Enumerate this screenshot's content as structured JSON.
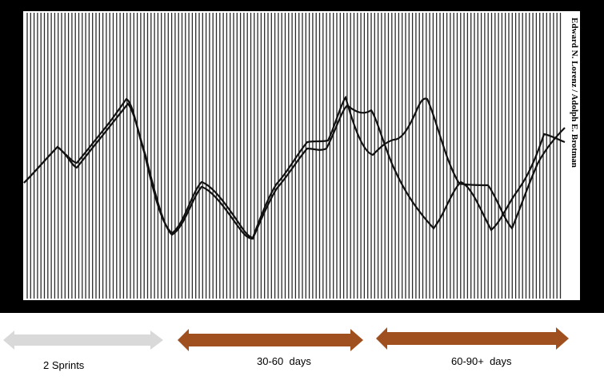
{
  "figure": {
    "credit": "Edward N. Lorenz / Adolph E. Brotman",
    "colors": {
      "frame": "#000000",
      "paper": "#ffffff",
      "ink": "#111111"
    }
  },
  "timeline": {
    "phases": [
      {
        "label": "2 Sprints",
        "color": "#d9d9d9"
      },
      {
        "label": "30-60  days",
        "color": "#a0501e"
      },
      {
        "label": "60-90+  days",
        "color": "#a0501e"
      }
    ]
  }
}
